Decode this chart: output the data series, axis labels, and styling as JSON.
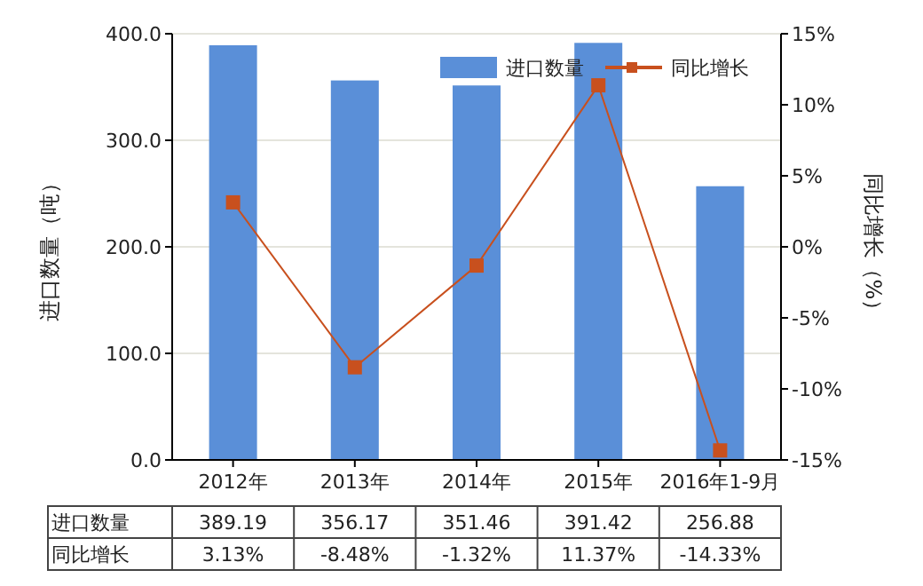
{
  "chart_data": {
    "type": "bar",
    "categories": [
      "2012年",
      "2013年",
      "2014年",
      "2015年",
      "2016年1-9月"
    ],
    "series": [
      {
        "name": "进口数量",
        "color": "#5a8fd8",
        "values": [
          389.19,
          356.17,
          351.46,
          391.42,
          256.88
        ],
        "value_labels": [
          "389.19",
          "356.17",
          "351.46",
          "391.42",
          "256.88"
        ]
      },
      {
        "name": "同比增长",
        "type": "line",
        "axis": "y2",
        "color": "#c8501e",
        "marker": "square",
        "values": [
          3.13,
          -8.48,
          -1.32,
          11.37,
          -14.33
        ],
        "value_labels": [
          "3.13%",
          "-8.48%",
          "-1.32%",
          "11.37%",
          "-14.33%"
        ]
      }
    ],
    "ylabel": "进口数量（吨）",
    "y2label": "同比增长（%）",
    "ylim": [
      0,
      400
    ],
    "yticks": [
      {
        "value": 0,
        "label": "0.0"
      },
      {
        "value": 100,
        "label": "100.0"
      },
      {
        "value": 200,
        "label": "200.0"
      },
      {
        "value": 300,
        "label": "300.0"
      },
      {
        "value": 400,
        "label": "400.0"
      }
    ],
    "y2lim": [
      -15,
      15
    ],
    "y2ticks": [
      {
        "value": -15,
        "label": "-15%"
      },
      {
        "value": -10,
        "label": "-10%"
      },
      {
        "value": -5,
        "label": "-5%"
      },
      {
        "value": 0,
        "label": "0%"
      },
      {
        "value": 5,
        "label": "5%"
      },
      {
        "value": 10,
        "label": "10%"
      },
      {
        "value": 15,
        "label": "15%"
      }
    ],
    "grid": "y",
    "legend": "top right"
  }
}
